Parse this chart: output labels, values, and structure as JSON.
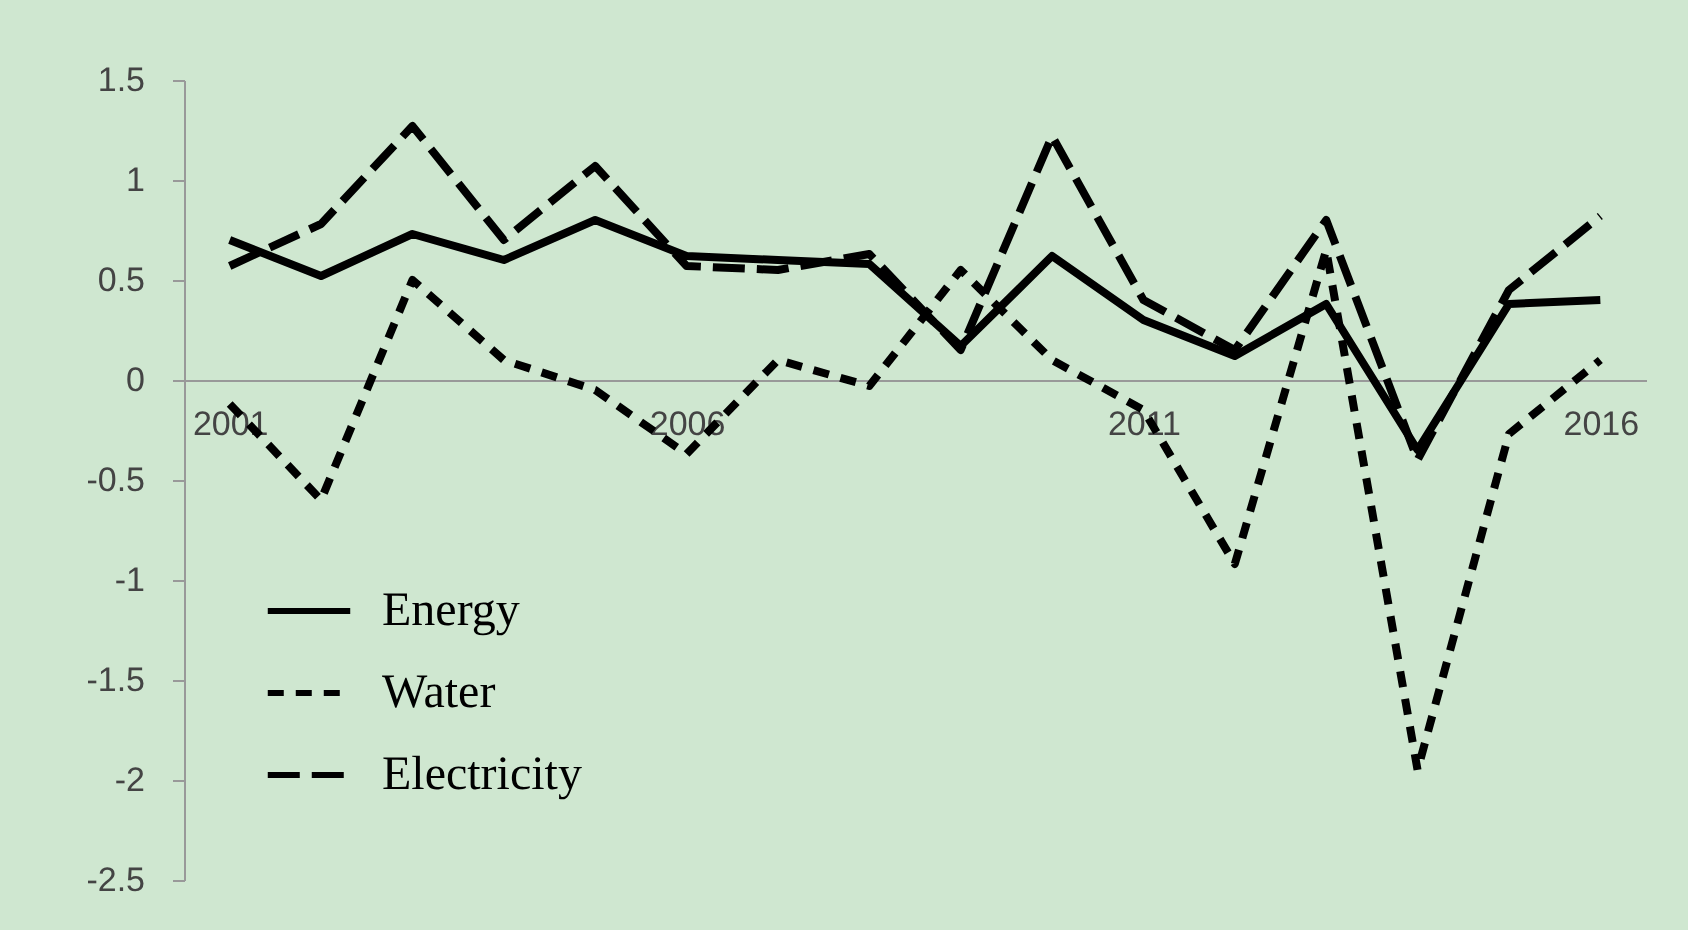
{
  "chart_data": {
    "type": "line",
    "categories": [
      "2001",
      null,
      null,
      null,
      null,
      "2006",
      null,
      null,
      null,
      null,
      "2011",
      null,
      null,
      null,
      null,
      "2016"
    ],
    "series": [
      {
        "name": "Energy",
        "color": "#000000",
        "line_style": "solid",
        "values": [
          0.7,
          0.52,
          0.73,
          0.6,
          0.8,
          0.62,
          0.6,
          0.58,
          0.17,
          0.62,
          0.3,
          0.12,
          0.38,
          -0.35,
          0.38,
          0.4
        ]
      },
      {
        "name": "Water",
        "color": "#000000",
        "line_style": "dotted",
        "values": [
          -0.12,
          -0.6,
          0.5,
          0.1,
          -0.05,
          -0.37,
          0.1,
          -0.03,
          0.55,
          0.1,
          -0.15,
          -0.92,
          0.65,
          -1.95,
          -0.27,
          0.1
        ]
      },
      {
        "name": "Electricity",
        "color": "#000000",
        "line_style": "dashed",
        "values": [
          0.57,
          0.78,
          1.27,
          0.7,
          1.07,
          0.57,
          0.55,
          0.63,
          0.15,
          1.22,
          0.4,
          0.15,
          0.8,
          -0.4,
          0.45,
          0.82
        ]
      }
    ],
    "ylim": [
      -2.5,
      1.5
    ],
    "yticks": [
      -2.5,
      -2,
      -1.5,
      -1,
      -0.5,
      0,
      0.5,
      1,
      1.5
    ],
    "grid": false,
    "legend": "bottom left",
    "marker": "none"
  }
}
